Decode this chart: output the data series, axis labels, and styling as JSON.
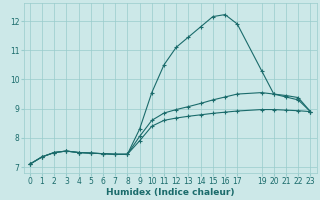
{
  "xlabel": "Humidex (Indice chaleur)",
  "xlim": [
    -0.5,
    23.5
  ],
  "ylim": [
    6.8,
    12.6
  ],
  "yticks": [
    7,
    8,
    9,
    10,
    11,
    12
  ],
  "xtick_positions": [
    0,
    1,
    2,
    3,
    4,
    5,
    6,
    7,
    8,
    9,
    10,
    11,
    12,
    13,
    14,
    15,
    16,
    17,
    19,
    20,
    21,
    22,
    23
  ],
  "xtick_labels": [
    "0",
    "1",
    "2",
    "3",
    "4",
    "5",
    "6",
    "7",
    "8",
    "9",
    "10",
    "11",
    "12",
    "13",
    "14",
    "15",
    "16",
    "17",
    "19",
    "20",
    "21",
    "22",
    "23"
  ],
  "background_color": "#cce8e8",
  "grid_color": "#99cccc",
  "line_color": "#1a6b6b",
  "series": [
    {
      "x": [
        0,
        1,
        2,
        3,
        4,
        5,
        6,
        7,
        8,
        9,
        10,
        11,
        12,
        13,
        14,
        15,
        16,
        17,
        19,
        20,
        21,
        22,
        23
      ],
      "y": [
        7.1,
        7.35,
        7.5,
        7.55,
        7.5,
        7.48,
        7.46,
        7.44,
        7.44,
        8.3,
        9.55,
        10.5,
        11.1,
        11.45,
        11.8,
        12.15,
        12.22,
        11.9,
        10.3,
        9.5,
        9.4,
        9.3,
        8.9
      ]
    },
    {
      "x": [
        0,
        1,
        2,
        3,
        4,
        5,
        6,
        7,
        8,
        9,
        10,
        11,
        12,
        13,
        14,
        15,
        16,
        17,
        19,
        20,
        21,
        22,
        23
      ],
      "y": [
        7.1,
        7.35,
        7.5,
        7.55,
        7.5,
        7.48,
        7.46,
        7.44,
        7.44,
        8.05,
        8.6,
        8.85,
        8.97,
        9.07,
        9.18,
        9.3,
        9.4,
        9.5,
        9.55,
        9.5,
        9.45,
        9.38,
        8.9
      ]
    },
    {
      "x": [
        0,
        1,
        2,
        3,
        4,
        5,
        6,
        7,
        8,
        9,
        10,
        11,
        12,
        13,
        14,
        15,
        16,
        17,
        19,
        20,
        21,
        22,
        23
      ],
      "y": [
        7.1,
        7.35,
        7.5,
        7.55,
        7.5,
        7.48,
        7.46,
        7.44,
        7.44,
        7.9,
        8.4,
        8.6,
        8.68,
        8.74,
        8.79,
        8.84,
        8.88,
        8.92,
        8.97,
        8.97,
        8.95,
        8.93,
        8.9
      ]
    }
  ]
}
